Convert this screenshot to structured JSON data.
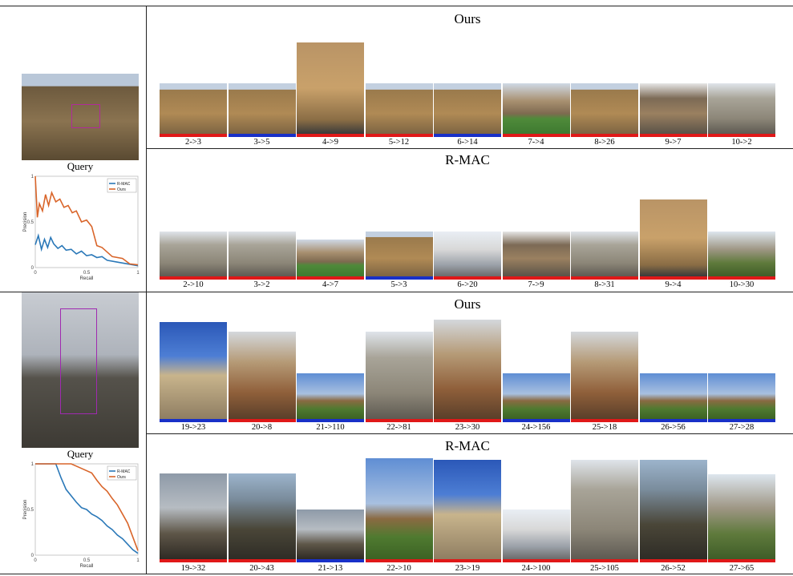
{
  "colors": {
    "relevant_bar": "#e01818",
    "query_like_bar": "#1830c8",
    "line_ours": "#d9652a",
    "line_rmac": "#2a78b8"
  },
  "query_label": "Query",
  "legend": {
    "rmac": "R-MAC",
    "ours": "Ours"
  },
  "axes": {
    "precision": "Precision",
    "recall": "Recall"
  },
  "blocks": [
    {
      "ours": {
        "title": "Ours",
        "items": [
          {
            "cap": "2->3",
            "bar": "red",
            "tone": "stone"
          },
          {
            "cap": "3->5",
            "bar": "blue",
            "tone": "stone"
          },
          {
            "cap": "4->9",
            "bar": "red",
            "tone": "tall"
          },
          {
            "cap": "5->12",
            "bar": "red",
            "tone": "stone"
          },
          {
            "cap": "6->14",
            "bar": "blue",
            "tone": "stone"
          },
          {
            "cap": "7->4",
            "bar": "red",
            "tone": "lawn"
          },
          {
            "cap": "8->26",
            "bar": "red",
            "tone": "stone"
          },
          {
            "cap": "9->7",
            "bar": "red",
            "tone": "bridge"
          },
          {
            "cap": "10->2",
            "bar": "red",
            "tone": "grey"
          }
        ]
      },
      "rmac": {
        "title": "R-MAC",
        "items": [
          {
            "cap": "2->10",
            "bar": "red",
            "tone": "grey"
          },
          {
            "cap": "3->2",
            "bar": "red",
            "tone": "grey"
          },
          {
            "cap": "4->7",
            "bar": "red",
            "tone": "lawn"
          },
          {
            "cap": "5->3",
            "bar": "blue",
            "tone": "stone"
          },
          {
            "cap": "6->20",
            "bar": "red",
            "tone": "white"
          },
          {
            "cap": "7->9",
            "bar": "red",
            "tone": "bridge"
          },
          {
            "cap": "8->31",
            "bar": "red",
            "tone": "grey"
          },
          {
            "cap": "9->4",
            "bar": "red",
            "tone": "tall"
          },
          {
            "cap": "10->30",
            "bar": "red",
            "tone": "green"
          }
        ]
      },
      "chart_data": {
        "type": "line",
        "xlabel": "Recall",
        "ylabel": "Precision",
        "xlim": [
          0,
          1
        ],
        "ylim": [
          0,
          1
        ],
        "xticks": [
          0,
          0.5,
          1
        ],
        "yticks": [
          0,
          0.5,
          1
        ],
        "legend_position": "top-right",
        "series": [
          {
            "name": "R-MAC",
            "x": [
              0,
              0.03,
              0.06,
              0.09,
              0.12,
              0.15,
              0.18,
              0.22,
              0.26,
              0.3,
              0.35,
              0.4,
              0.45,
              0.5,
              0.55,
              0.6,
              0.65,
              0.7,
              0.8,
              0.9,
              1.0
            ],
            "y": [
              0.25,
              0.35,
              0.2,
              0.31,
              0.22,
              0.33,
              0.26,
              0.21,
              0.24,
              0.19,
              0.2,
              0.15,
              0.18,
              0.13,
              0.14,
              0.11,
              0.12,
              0.08,
              0.06,
              0.04,
              0.02
            ]
          },
          {
            "name": "Ours",
            "x": [
              0,
              0.02,
              0.04,
              0.07,
              0.1,
              0.13,
              0.16,
              0.2,
              0.24,
              0.28,
              0.32,
              0.36,
              0.4,
              0.45,
              0.5,
              0.55,
              0.6,
              0.65,
              0.75,
              0.85,
              0.92,
              1.0
            ],
            "y": [
              1.0,
              0.55,
              0.7,
              0.62,
              0.8,
              0.68,
              0.82,
              0.72,
              0.75,
              0.66,
              0.68,
              0.6,
              0.62,
              0.5,
              0.52,
              0.45,
              0.24,
              0.22,
              0.12,
              0.1,
              0.04,
              0.03
            ]
          }
        ]
      }
    },
    {
      "ours": {
        "title": "Ours",
        "items": [
          {
            "cap": "19->23",
            "bar": "blue",
            "tone": "sky"
          },
          {
            "cap": "20->8",
            "bar": "red",
            "tone": "tower"
          },
          {
            "cap": "21->110",
            "bar": "blue",
            "tone": "lawnsky"
          },
          {
            "cap": "22->81",
            "bar": "red",
            "tone": "grey"
          },
          {
            "cap": "23->30",
            "bar": "red",
            "tone": "tower"
          },
          {
            "cap": "24->156",
            "bar": "blue",
            "tone": "lawnsky"
          },
          {
            "cap": "25->18",
            "bar": "red",
            "tone": "tower"
          },
          {
            "cap": "26->56",
            "bar": "blue",
            "tone": "lawnsky"
          },
          {
            "cap": "27->28",
            "bar": "blue",
            "tone": "lawnsky"
          }
        ]
      },
      "rmac": {
        "title": "R-MAC",
        "items": [
          {
            "cap": "19->32",
            "bar": "red",
            "tone": "dusk"
          },
          {
            "cap": "20->43",
            "bar": "red",
            "tone": "spire"
          },
          {
            "cap": "21->13",
            "bar": "blue",
            "tone": "dusk"
          },
          {
            "cap": "22->10",
            "bar": "red",
            "tone": "lawnsky"
          },
          {
            "cap": "23->19",
            "bar": "red",
            "tone": "sky"
          },
          {
            "cap": "24->100",
            "bar": "red",
            "tone": "white"
          },
          {
            "cap": "25->105",
            "bar": "red",
            "tone": "grey"
          },
          {
            "cap": "26->52",
            "bar": "red",
            "tone": "spire"
          },
          {
            "cap": "27->65",
            "bar": "red",
            "tone": "green"
          }
        ]
      },
      "chart_data": {
        "type": "line",
        "xlabel": "Recall",
        "ylabel": "Precision",
        "xlim": [
          0,
          1
        ],
        "ylim": [
          0,
          1
        ],
        "xticks": [
          0,
          0.5,
          1
        ],
        "yticks": [
          0,
          0.5,
          1
        ],
        "legend_position": "top-right",
        "series": [
          {
            "name": "R-MAC",
            "x": [
              0,
              0.2,
              0.25,
              0.3,
              0.35,
              0.4,
              0.45,
              0.5,
              0.55,
              0.6,
              0.65,
              0.7,
              0.75,
              0.8,
              0.85,
              0.9,
              0.95,
              1.0
            ],
            "y": [
              1.0,
              1.0,
              0.85,
              0.72,
              0.65,
              0.58,
              0.52,
              0.5,
              0.45,
              0.42,
              0.38,
              0.32,
              0.28,
              0.22,
              0.18,
              0.12,
              0.06,
              0.02
            ]
          },
          {
            "name": "Ours",
            "x": [
              0,
              0.35,
              0.45,
              0.55,
              0.6,
              0.65,
              0.7,
              0.75,
              0.8,
              0.85,
              0.9,
              0.95,
              1.0
            ],
            "y": [
              1.0,
              1.0,
              0.95,
              0.9,
              0.82,
              0.75,
              0.7,
              0.62,
              0.55,
              0.45,
              0.35,
              0.2,
              0.05
            ]
          }
        ]
      }
    }
  ]
}
